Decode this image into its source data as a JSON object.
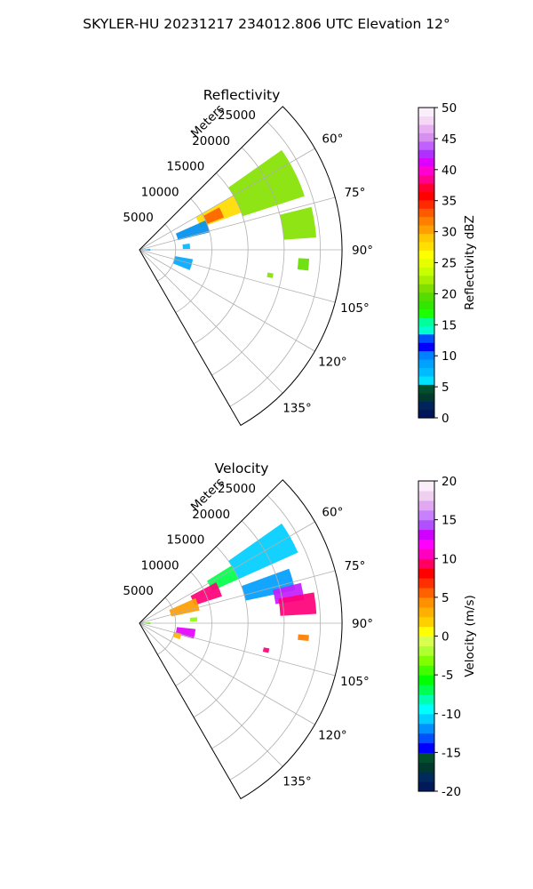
{
  "figure_title": "SKYLER-HU  20231217  234012.806 UTC Elevation 12°",
  "chart_data": [
    {
      "type": "polar-ppi",
      "title": "Reflectivity",
      "radial_axis_label": "Meters",
      "radial_ticks": [
        "5000",
        "10000",
        "15000",
        "20000",
        "25000"
      ],
      "radial_range": [
        0,
        28000
      ],
      "azimuth_range_deg": [
        45,
        150
      ],
      "azimuth_ticks": [
        "60°",
        "75°",
        "90°",
        "105°",
        "120°",
        "135°"
      ],
      "grid": true,
      "colorbar": {
        "label": "Reflectivity dBZ",
        "range": [
          0,
          50
        ],
        "ticks": [
          "0",
          "5",
          "10",
          "15",
          "20",
          "25",
          "30",
          "35",
          "40",
          "45",
          "50"
        ]
      },
      "echo_regions": [
        {
          "az": [
            55,
            72
          ],
          "r": [
            15000,
            24000
          ],
          "value": 21
        },
        {
          "az": [
            60,
            70
          ],
          "r": [
            9000,
            15000
          ],
          "value": 28
        },
        {
          "az": [
            62,
            69
          ],
          "r": [
            10000,
            12500
          ],
          "value": 33
        },
        {
          "az": [
            66,
            76
          ],
          "r": [
            5500,
            10000
          ],
          "value": 13
        },
        {
          "az": [
            76,
            86
          ],
          "r": [
            20000,
            24500
          ],
          "value": 21
        },
        {
          "az": [
            83,
            89
          ],
          "r": [
            6000,
            7000
          ],
          "value": 7
        },
        {
          "az": [
            85,
            95
          ],
          "r": [
            200,
            1500
          ],
          "value": 8
        },
        {
          "az": [
            100,
            112
          ],
          "r": [
            5000,
            7500
          ],
          "value": 8
        },
        {
          "az": [
            93,
            97
          ],
          "r": [
            22000,
            23500
          ],
          "value": 20
        },
        {
          "az": [
            100,
            102
          ],
          "r": [
            18000,
            18800
          ],
          "value": 21
        }
      ]
    },
    {
      "type": "polar-ppi",
      "title": "Velocity",
      "radial_axis_label": "Meters",
      "radial_ticks": [
        "5000",
        "10000",
        "15000",
        "20000",
        "25000"
      ],
      "radial_range": [
        0,
        28000
      ],
      "azimuth_range_deg": [
        45,
        150
      ],
      "azimuth_ticks": [
        "60°",
        "75°",
        "90°",
        "105°",
        "120°",
        "135°"
      ],
      "grid": true,
      "colorbar": {
        "label": "Velocity (m/s)",
        "range": [
          -20,
          20
        ],
        "ticks": [
          "-20",
          "-15",
          "-10",
          "-5",
          "0",
          "5",
          "10",
          "15",
          "20"
        ]
      },
      "echo_regions": [
        {
          "az": [
            55,
            66
          ],
          "r": [
            15000,
            24000
          ],
          "value": -11
        },
        {
          "az": [
            58,
            66
          ],
          "r": [
            11000,
            15000
          ],
          "value": -7
        },
        {
          "az": [
            62,
            72
          ],
          "r": [
            8000,
            12000
          ],
          "value": 10
        },
        {
          "az": [
            66,
            78
          ],
          "r": [
            4500,
            8500
          ],
          "value": 4
        },
        {
          "az": [
            70,
            78
          ],
          "r": [
            15000,
            22000
          ],
          "value": -12
        },
        {
          "az": [
            76,
            82
          ],
          "r": [
            19000,
            23000
          ],
          "value": 14
        },
        {
          "az": [
            80,
            87
          ],
          "r": [
            19500,
            24500
          ],
          "value": 10
        },
        {
          "az": [
            84,
            88
          ],
          "r": [
            7000,
            8000
          ],
          "value": -3
        },
        {
          "az": [
            85,
            95
          ],
          "r": [
            200,
            1500
          ],
          "value": -4
        },
        {
          "az": [
            96,
            106
          ],
          "r": [
            5200,
            7800
          ],
          "value": 13
        },
        {
          "az": [
            104,
            112
          ],
          "r": [
            5000,
            6000
          ],
          "value": 3
        },
        {
          "az": [
            94,
            96
          ],
          "r": [
            22000,
            23500
          ],
          "value": 5
        },
        {
          "az": [
            101,
            103
          ],
          "r": [
            17500,
            18300
          ],
          "value": 10
        }
      ]
    }
  ]
}
